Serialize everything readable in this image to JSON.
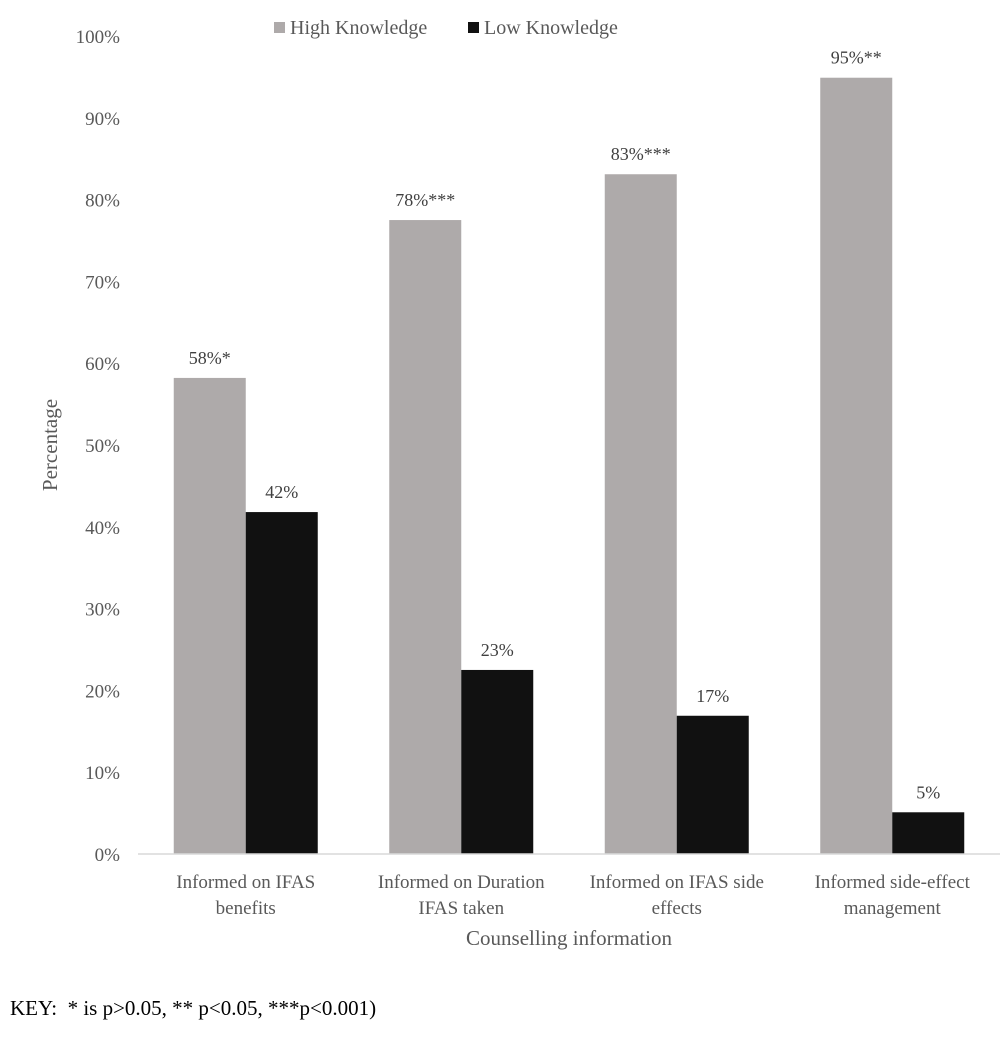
{
  "chart_data": {
    "type": "bar",
    "categories": [
      [
        "Informed on  IFAS",
        "benefits"
      ],
      [
        "Informed on Duration",
        "IFAS taken"
      ],
      [
        "Informed on IFAS side",
        "effects"
      ],
      [
        "Informed side-effect",
        "management"
      ]
    ],
    "series": [
      {
        "name": "High Knowledge",
        "color": "#aeaaaa",
        "values": [
          58.2,
          77.5,
          83.1,
          94.9
        ],
        "labels": [
          "58%*",
          "78%***",
          "83%***",
          "95%**"
        ]
      },
      {
        "name": "Low Knowledge",
        "color": "#111111",
        "values": [
          41.8,
          22.5,
          16.9,
          5.1
        ],
        "labels": [
          "42%",
          "23%",
          "17%",
          "5%"
        ]
      }
    ],
    "ylim": [
      0,
      100
    ],
    "ytick_step": 10,
    "ytick_suffix": "%",
    "title": "",
    "xlabel": "Counselling information",
    "ylabel": "Percentage",
    "legend_position": "top-center",
    "grid": false
  },
  "key_note": "KEY:  * is p>0.05, ** p<0.05, ***p<0.001)"
}
